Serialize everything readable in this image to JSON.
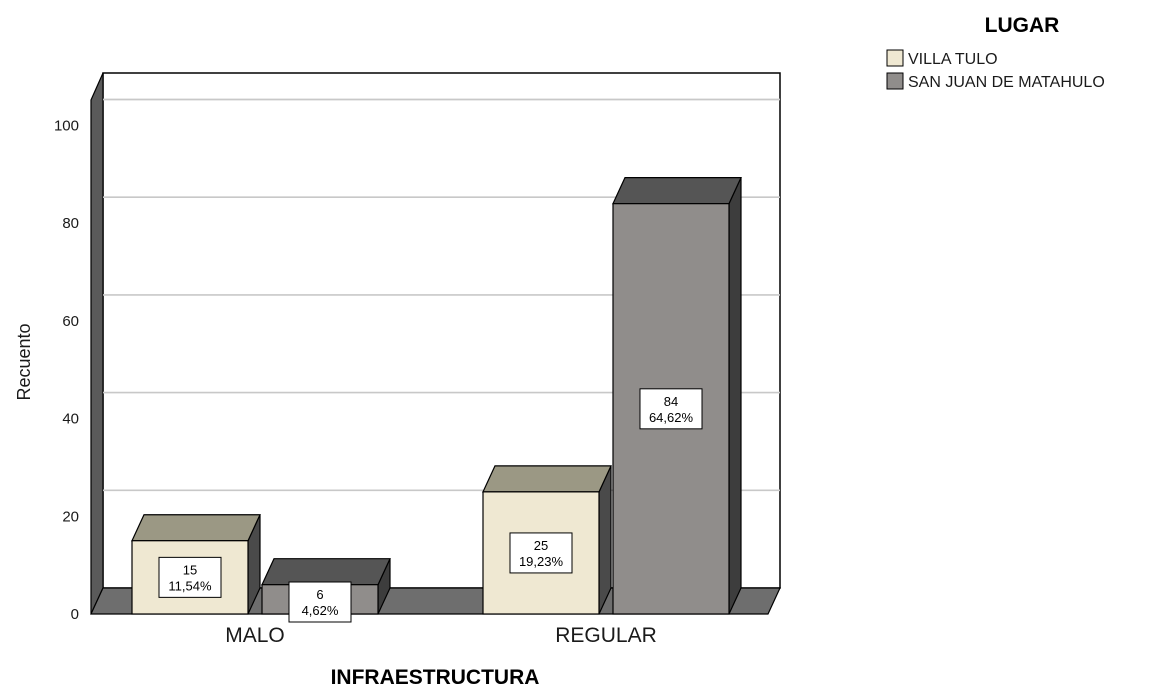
{
  "chart_data": {
    "type": "bar",
    "title": "",
    "xlabel": "INFRAESTRUCTURA",
    "ylabel": "Recuento",
    "ylim": [
      0,
      100
    ],
    "yticks": [
      0,
      20,
      40,
      60,
      80,
      100
    ],
    "grid": true,
    "three_d": true,
    "legend_title": "LUGAR",
    "legend_position": "top-right",
    "categories": [
      "MALO",
      "REGULAR"
    ],
    "series": [
      {
        "name": "VILLA TULO",
        "color": "#efe8d2",
        "top_color": "#9b9884",
        "values": [
          15,
          25
        ],
        "labels": [
          [
            "15",
            "11,54%"
          ],
          [
            "25",
            "19,23%"
          ]
        ]
      },
      {
        "name": "SAN JUAN DE MATAHULO",
        "color": "#908d8b",
        "top_color": "#555555",
        "values": [
          6,
          84
        ],
        "labels": [
          [
            "6",
            "4,62%"
          ],
          [
            "84",
            "64,62%"
          ]
        ]
      }
    ]
  }
}
